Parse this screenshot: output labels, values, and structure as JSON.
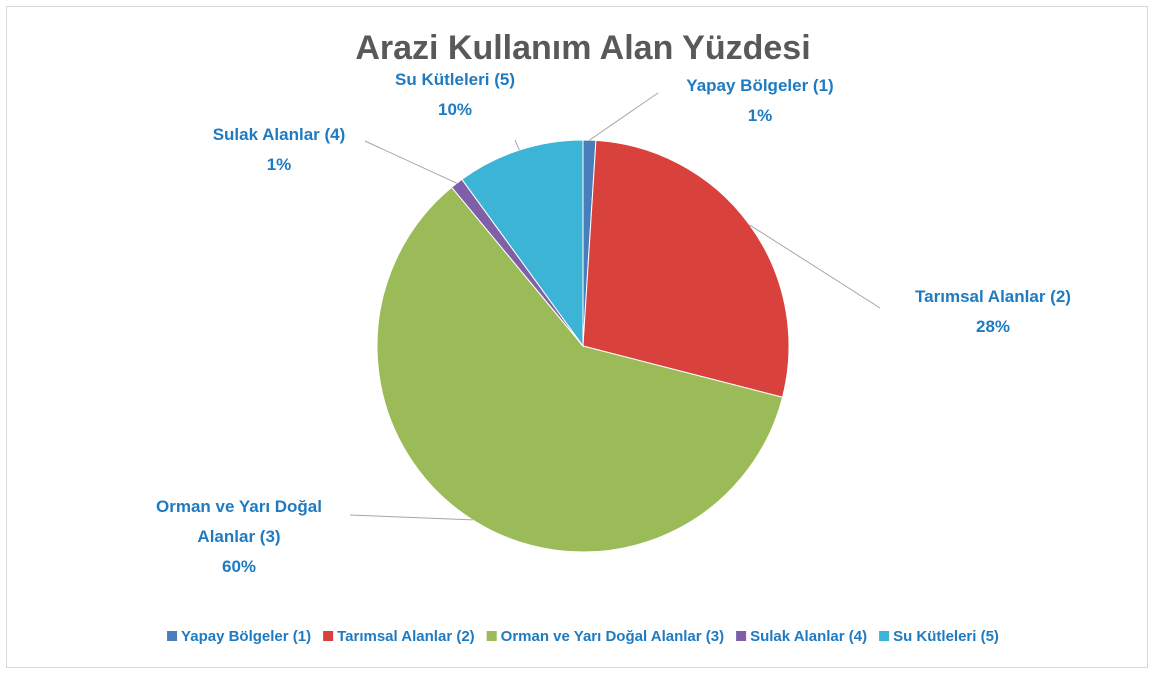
{
  "chart_data": {
    "type": "pie",
    "title": "Arazi Kullanım Alan Yüzdesi",
    "categories": [
      "Yapay Bölgeler (1)",
      "Tarımsal Alanlar (2)",
      "Orman ve Yarı Doğal Alanlar (3)",
      "Sulak Alanlar (4)",
      "Su Kütleleri (5)"
    ],
    "values": [
      1,
      28,
      60,
      1,
      10
    ],
    "value_labels": [
      "1%",
      "28%",
      "60%",
      "1%",
      "10%"
    ],
    "colors": [
      "#4a7ebb",
      "#d9413d",
      "#9bbb59",
      "#7f5fa8",
      "#3cb4d6"
    ],
    "legend": "bottom"
  }
}
